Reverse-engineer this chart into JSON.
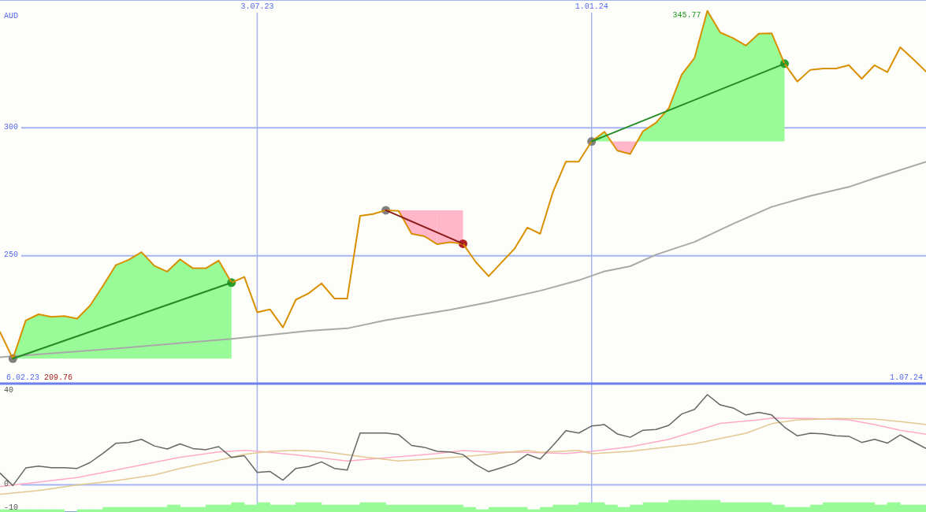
{
  "chart_data": [
    {
      "type": "line",
      "ylabel": "AUD",
      "x": [
        "2023-02-13",
        "2023-02-20",
        "2023-02-27",
        "2023-03-06",
        "2023-03-13",
        "2023-03-20",
        "2023-03-27",
        "2023-04-03",
        "2023-04-10",
        "2023-04-17",
        "2023-04-24",
        "2023-05-01",
        "2023-05-08",
        "2023-05-15",
        "2023-05-22",
        "2023-05-29",
        "2023-06-05",
        "2023-06-12",
        "2023-06-19",
        "2023-06-26",
        "2023-07-03",
        "2023-07-10",
        "2023-07-17",
        "2023-07-24",
        "2023-07-31",
        "2023-08-07",
        "2023-08-14",
        "2023-08-21",
        "2023-08-28",
        "2023-09-04",
        "2023-09-11",
        "2023-09-18",
        "2023-09-25",
        "2023-10-02",
        "2023-10-09",
        "2023-10-16",
        "2023-10-23",
        "2023-10-30",
        "2023-11-06",
        "2023-11-13",
        "2023-11-20",
        "2023-11-27",
        "2023-12-04",
        "2023-12-11",
        "2023-12-18",
        "2023-12-25",
        "2024-01-01",
        "2024-01-08",
        "2024-01-15",
        "2024-01-22",
        "2024-01-29",
        "2024-02-05",
        "2024-02-12",
        "2024-02-19",
        "2024-02-26",
        "2024-03-04",
        "2024-03-11",
        "2024-03-18",
        "2024-03-25",
        "2024-04-01",
        "2024-04-08",
        "2024-04-15",
        "2024-04-22",
        "2024-04-29",
        "2024-05-06",
        "2024-05-13",
        "2024-05-20",
        "2024-05-27",
        "2024-06-03",
        "2024-06-10",
        "2024-06-17",
        "2024-06-24",
        "2024-07-01"
      ],
      "xlim": [
        "2023-02-13",
        "2024-07-01"
      ],
      "xticks": [
        {
          "value": "2023-07-03",
          "label": "3.07.23"
        },
        {
          "value": "2024-01-01",
          "label": "1.01.24"
        }
      ],
      "ylim": [
        200,
        350
      ],
      "yticks": [
        250,
        300
      ],
      "grid": true,
      "series": [
        {
          "type": "area",
          "color": "#98fb98",
          "x": [
            "2023-02-20",
            "2023-02-27",
            "2023-03-06",
            "2023-03-13",
            "2023-03-20",
            "2023-03-27",
            "2023-03-27"
          ],
          "values": [
            209.76,
            224.7,
            227.1,
            226.1,
            226.4,
            225.4,
            209.76
          ]
        },
        {
          "type": "area",
          "color": "#98fb98",
          "x": [
            "2023-03-27",
            "2023-03-27",
            "2023-04-03",
            "2023-04-10",
            "2023-04-17",
            "2023-04-24",
            "2023-05-01",
            "2023-05-08",
            "2023-05-15",
            "2023-05-22",
            "2023-05-29",
            "2023-06-05",
            "2023-06-12",
            "2023-06-19",
            "2023-06-19"
          ],
          "values": [
            209.76,
            225.4,
            230.5,
            238.2,
            246.3,
            248.4,
            251.4,
            246.1,
            243.8,
            248.6,
            245.1,
            245.1,
            248.1,
            239.5,
            209.76
          ]
        },
        {
          "type": "area",
          "color": "#ffb6c8",
          "x": [
            "2023-09-11",
            "2023-09-18",
            "2023-09-25",
            "2023-10-02",
            "2023-10-09",
            "2023-10-09"
          ],
          "values": [
            267.8,
            267.5,
            258.6,
            257.6,
            254.5,
            267.8
          ]
        },
        {
          "type": "area",
          "color": "#ffb6c8",
          "x": [
            "2023-10-09",
            "2023-10-09",
            "2023-10-16",
            "2023-10-23",
            "2023-10-23"
          ],
          "values": [
            267.8,
            254.5,
            255.3,
            254.7,
            267.8
          ]
        },
        {
          "type": "area",
          "color": "#98fb98",
          "x": [
            "2024-01-01",
            "2024-01-08",
            "2024-01-11"
          ],
          "values": [
            294.7,
            298.5,
            294.7
          ]
        },
        {
          "type": "area",
          "color": "#ffb6c8",
          "x": [
            "2024-01-11",
            "2024-01-15",
            "2024-01-22",
            "2024-01-26"
          ],
          "values": [
            294.7,
            291.1,
            289.8,
            294.7
          ]
        },
        {
          "type": "area",
          "color": "#98fb98",
          "x": [
            "2024-01-26",
            "2024-01-29",
            "2024-02-05",
            "2024-02-12",
            "2024-02-19",
            "2024-02-26",
            "2024-03-04",
            "2024-03-11",
            "2024-03-18",
            "2024-03-25",
            "2024-04-01",
            "2024-04-08",
            "2024-04-15",
            "2024-04-15"
          ],
          "values": [
            294.7,
            298.7,
            302.0,
            307.7,
            320.8,
            327.3,
            345.77,
            337.3,
            335.1,
            332.2,
            336.8,
            337.0,
            325.1,
            294.7
          ]
        },
        {
          "color": "#a9a9a9",
          "x": [
            "2023-02-13",
            "2023-04-17",
            "2023-06-19",
            "2023-07-31",
            "2023-08-21",
            "2023-09-11",
            "2023-10-16",
            "2023-11-06",
            "2023-12-04",
            "2023-12-25",
            "2024-01-08",
            "2024-01-22",
            "2024-02-05",
            "2024-02-26",
            "2024-03-18",
            "2024-04-08",
            "2024-04-29",
            "2024-05-20",
            "2024-06-03",
            "2024-07-01"
          ],
          "values": [
            210.3,
            213.7,
            217.5,
            220.6,
            221.6,
            224.8,
            228.9,
            231.8,
            236.3,
            240.4,
            243.9,
            245.9,
            250.4,
            255.4,
            262.5,
            269.1,
            273.4,
            276.9,
            280.3,
            286.7
          ]
        },
        {
          "type": "scatter",
          "color": "#808080",
          "marker": "circle",
          "x": [
            "2023-02-20",
            "2023-09-11",
            "2024-01-01"
          ],
          "values": [
            209.76,
            267.8,
            294.7
          ]
        },
        {
          "type": "scatter",
          "color": "#2ca02c",
          "marker": "circle",
          "x": [
            "2023-06-19",
            "2024-04-15"
          ],
          "values": [
            239.5,
            325.1
          ]
        },
        {
          "type": "scatter",
          "color": "#b22222",
          "marker": "circle",
          "x": [
            "2023-10-23"
          ],
          "values": [
            254.7
          ]
        },
        {
          "color": "#d99000",
          "values": [
            220.2,
            209.76,
            224.7,
            227.1,
            226.1,
            226.4,
            225.4,
            230.5,
            238.2,
            246.3,
            248.4,
            251.4,
            246.1,
            243.8,
            248.6,
            245.1,
            245.1,
            248.1,
            239.5,
            241.7,
            227.9,
            229.0,
            222.0,
            232.8,
            235.3,
            239.2,
            233.3,
            233.3,
            265.6,
            266.3,
            267.8,
            267.5,
            258.6,
            257.6,
            254.5,
            255.3,
            254.7,
            247.5,
            242.0,
            247.4,
            252.7,
            261.0,
            258.6,
            275.0,
            286.8,
            286.8,
            294.7,
            298.5,
            291.1,
            289.8,
            298.7,
            302.0,
            307.7,
            320.8,
            327.3,
            345.77,
            337.3,
            335.1,
            332.2,
            336.8,
            337.0,
            325.1,
            318.1,
            322.7,
            323.2,
            323.2,
            324.5,
            319.2,
            324.5,
            321.8,
            331.5,
            326.9,
            322.0
          ]
        },
        {
          "color": "#228b22",
          "x": [
            "2023-02-20",
            "2023-06-19",
            "2023-10-02",
            "2024-01-01",
            "2024-04-15"
          ],
          "values": [
            209.76,
            239.5,
            null,
            294.7,
            325.1
          ]
        },
        {
          "color": "#8b1a1a",
          "x": [
            "2023-09-11",
            "2023-10-23"
          ],
          "values": [
            267.8,
            254.7
          ]
        }
      ],
      "annotations": [
        "6.02.23",
        "209.76",
        {
          "text": "345.77",
          "x": "2024-03-04",
          "y": 345.77
        },
        "1.07.24"
      ]
    },
    {
      "type": "line",
      "x": [
        "2023-02-13",
        "2023-02-20",
        "2023-02-27",
        "2023-03-06",
        "2023-03-13",
        "2023-03-20",
        "2023-03-27",
        "2023-04-03",
        "2023-04-10",
        "2023-04-17",
        "2023-04-24",
        "2023-05-01",
        "2023-05-08",
        "2023-05-15",
        "2023-05-22",
        "2023-05-29",
        "2023-06-05",
        "2023-06-12",
        "2023-06-19",
        "2023-06-26",
        "2023-07-03",
        "2023-07-10",
        "2023-07-17",
        "2023-07-24",
        "2023-07-31",
        "2023-08-07",
        "2023-08-14",
        "2023-08-21",
        "2023-08-28",
        "2023-09-04",
        "2023-09-11",
        "2023-09-18",
        "2023-09-25",
        "2023-10-02",
        "2023-10-09",
        "2023-10-16",
        "2023-10-23",
        "2023-10-30",
        "2023-11-06",
        "2023-11-13",
        "2023-11-20",
        "2023-11-27",
        "2023-12-04",
        "2023-12-11",
        "2023-12-18",
        "2023-12-25",
        "2024-01-01",
        "2024-01-08",
        "2024-01-15",
        "2024-01-22",
        "2024-01-29",
        "2024-02-05",
        "2024-02-12",
        "2024-02-19",
        "2024-02-26",
        "2024-03-04",
        "2024-03-11",
        "2024-03-18",
        "2024-03-25",
        "2024-04-01",
        "2024-04-08",
        "2024-04-15",
        "2024-04-22",
        "2024-04-29",
        "2024-05-06",
        "2024-05-13",
        "2024-05-20",
        "2024-05-27",
        "2024-06-03",
        "2024-06-10",
        "2024-06-17",
        "2024-06-24",
        "2024-07-01"
      ],
      "xlim": [
        "2023-02-13",
        "2024-07-01"
      ],
      "xticks": [
        {
          "value": "2023-07-03",
          "label": null
        },
        {
          "value": "2024-01-01",
          "label": null
        }
      ],
      "ylim": [
        -11.6,
        43.2
      ],
      "yticks": [
        -10,
        0,
        40
      ],
      "tick_labels": "y",
      "grid": "x",
      "ref_lines": [
        {
          "axis": "y",
          "value": 0,
          "color": "#a6b4f2"
        }
      ],
      "series": [
        {
          "type": "bar",
          "color": "#98fb98",
          "x": [
            "2023-02-16T12:00",
            "2023-02-23T12:00",
            "2023-03-02T12:00",
            "2023-03-09T12:00",
            "2023-03-16T12:00",
            "2023-03-23T12:00",
            "2023-03-30T12:00",
            "2023-04-06T12:00",
            "2023-04-13T12:00",
            "2023-04-20T12:00",
            "2023-04-27T12:00",
            "2023-05-04T12:00",
            "2023-05-11T12:00",
            "2023-05-18T12:00",
            "2023-05-25T12:00",
            "2023-06-01T12:00",
            "2023-06-08T12:00",
            "2023-06-15T12:00",
            "2023-06-22T12:00",
            "2023-06-29T12:00",
            "2023-07-06T12:00",
            "2023-07-13T12:00",
            "2023-07-20T12:00",
            "2023-07-27T12:00",
            "2023-08-03T12:00",
            "2023-08-10T12:00",
            "2023-08-17T12:00",
            "2023-08-24T12:00",
            "2023-08-31T12:00",
            "2023-09-07T12:00",
            "2023-09-14T12:00",
            "2023-09-21T12:00",
            "2023-09-28T12:00",
            "2023-10-05T12:00",
            "2023-10-12T12:00",
            "2023-10-19T12:00",
            "2023-10-26T12:00",
            "2023-11-02T12:00",
            "2023-11-09T12:00",
            "2023-11-16T12:00",
            "2023-11-23T12:00",
            "2023-11-30T12:00",
            "2023-12-07T12:00",
            "2023-12-14T12:00",
            "2023-12-21T12:00",
            "2023-12-28T12:00",
            "2024-01-04T12:00",
            "2024-01-11T12:00",
            "2024-01-18T12:00",
            "2024-01-25T12:00",
            "2024-02-01T12:00",
            "2024-02-08T12:00",
            "2024-02-15T12:00",
            "2024-02-22T12:00",
            "2024-02-29T12:00",
            "2024-03-07T12:00",
            "2024-03-14T12:00",
            "2024-03-21T12:00",
            "2024-03-28T12:00",
            "2024-04-04T12:00",
            "2024-04-11T12:00",
            "2024-04-18T12:00",
            "2024-04-25T12:00",
            "2024-05-02T12:00",
            "2024-05-09T12:00",
            "2024-05-16T12:00",
            "2024-05-23T12:00",
            "2024-05-30T12:00",
            "2024-06-06T12:00",
            "2024-06-13T12:00",
            "2024-06-20T12:00",
            "2024-06-27T12:00"
          ],
          "base": [
            -11.6,
            -11.6,
            -11.6,
            -11.6,
            -11.6,
            -11.6,
            -11.6,
            -11.6,
            -11.6,
            -11.6,
            -11.6,
            -11.6,
            -11.6,
            -11.6,
            -11.6,
            -11.6,
            -11.6,
            -11.6,
            -11.6,
            -11.6,
            -11.6,
            -11.6,
            -11.6,
            -11.6,
            -11.6,
            -11.6,
            -11.6,
            -11.6,
            -11.6,
            -11.6,
            -11.6,
            -11.6,
            -11.6,
            -11.6,
            -11.6,
            -11.6,
            -11.6,
            -11.6,
            -11.6,
            -11.6,
            -11.6,
            -11.6,
            -11.6,
            -11.6,
            -11.6,
            -11.6,
            -11.6,
            -11.6,
            -11.6,
            -11.6,
            -11.6,
            -11.6,
            -11.6,
            -11.6,
            -11.6,
            -11.6,
            -11.6,
            -11.6,
            -11.6,
            -11.6,
            -11.6,
            -11.6,
            -11.6,
            -11.6,
            -11.6,
            -11.6,
            -11.6,
            -11.6,
            -11.6,
            -11.6,
            -11.6,
            -11.6
          ],
          "values": [
            1,
            1,
            1,
            1,
            1,
            0,
            1,
            1,
            2,
            2,
            2,
            2,
            2,
            3,
            2,
            2,
            3,
            3,
            4,
            3,
            4,
            3,
            3,
            4,
            4,
            3,
            3,
            3,
            4,
            4,
            3,
            3,
            3,
            3,
            3,
            3,
            2,
            1,
            2,
            2,
            2,
            1,
            2,
            3,
            3,
            4,
            4,
            3,
            2,
            3,
            4,
            4,
            5,
            5,
            5,
            5,
            4,
            4,
            4,
            4,
            3,
            2,
            2,
            3,
            4,
            4,
            4,
            4,
            3,
            4,
            3,
            3
          ]
        },
        {
          "color": "#ffaac8",
          "x": [
            "2023-02-13",
            "2023-03-06",
            "2023-03-27",
            "2023-04-17",
            "2023-05-01",
            "2023-05-22",
            "2023-06-12",
            "2023-06-26",
            "2023-07-03",
            "2023-07-24",
            "2023-08-21",
            "2023-09-11",
            "2023-10-09",
            "2023-10-23",
            "2023-11-06",
            "2023-11-27",
            "2023-12-18",
            "2024-01-01",
            "2024-01-22",
            "2024-02-12",
            "2024-02-26",
            "2024-03-11",
            "2024-04-01",
            "2024-04-08",
            "2024-04-29",
            "2024-05-20",
            "2024-06-03",
            "2024-06-17",
            "2024-07-01"
          ],
          "values": [
            -0.8,
            1.2,
            3.1,
            6.3,
            8.5,
            11.8,
            14.0,
            14.7,
            14.4,
            12.8,
            10.2,
            11.5,
            13.4,
            14.6,
            14.0,
            13.9,
            13.4,
            14.3,
            16.2,
            19.4,
            22.8,
            26.2,
            27.7,
            28.5,
            28.3,
            27.7,
            25.7,
            23.3,
            21.6
          ]
        },
        {
          "color": "#e2c890",
          "x": [
            "2023-02-13",
            "2023-03-06",
            "2023-03-27",
            "2023-04-17",
            "2023-05-08",
            "2023-05-22",
            "2023-06-12",
            "2023-06-26",
            "2023-07-10",
            "2023-07-24",
            "2023-08-07",
            "2023-08-28",
            "2023-09-18",
            "2023-10-02",
            "2023-10-23",
            "2023-11-06",
            "2023-11-27",
            "2023-12-04",
            "2023-12-25",
            "2024-01-01",
            "2024-01-22",
            "2024-02-26",
            "2024-03-25",
            "2024-04-08",
            "2024-04-22",
            "2024-05-13",
            "2024-06-03",
            "2024-06-17",
            "2024-07-01"
          ],
          "values": [
            -4.0,
            -2.4,
            -0.1,
            1.8,
            4.2,
            7.0,
            10.5,
            13.0,
            14.3,
            14.7,
            14.3,
            12.1,
            10.2,
            10.8,
            12.0,
            13.0,
            14.7,
            13.9,
            14.7,
            13.3,
            14.3,
            17.5,
            22.0,
            26.1,
            27.7,
            28.3,
            28.1,
            27.0,
            25.7
          ]
        },
        {
          "color": "#666666",
          "values": [
            5.0,
            -0.3,
            7.2,
            8.0,
            7.3,
            7.3,
            7.0,
            9.5,
            13.4,
            17.7,
            18.1,
            19.4,
            16.6,
            15.3,
            17.5,
            15.5,
            15.0,
            16.3,
            11.7,
            12.4,
            5.3,
            5.7,
            2.0,
            7.0,
            7.8,
            9.8,
            7.0,
            6.3,
            22.1,
            22.1,
            22.1,
            21.4,
            16.8,
            16.0,
            14.3,
            14.0,
            12.9,
            8.6,
            5.6,
            7.3,
            9.2,
            13.0,
            11.0,
            16.8,
            23.1,
            22.1,
            25.1,
            25.7,
            21.7,
            20.3,
            23.3,
            23.6,
            25.4,
            30.2,
            32.2,
            38.5,
            34.1,
            32.8,
            29.8,
            30.9,
            29.8,
            24.6,
            20.9,
            22.0,
            21.8,
            20.9,
            20.7,
            18.1,
            19.4,
            17.8,
            21.3,
            18.4,
            15.5
          ]
        }
      ]
    }
  ]
}
